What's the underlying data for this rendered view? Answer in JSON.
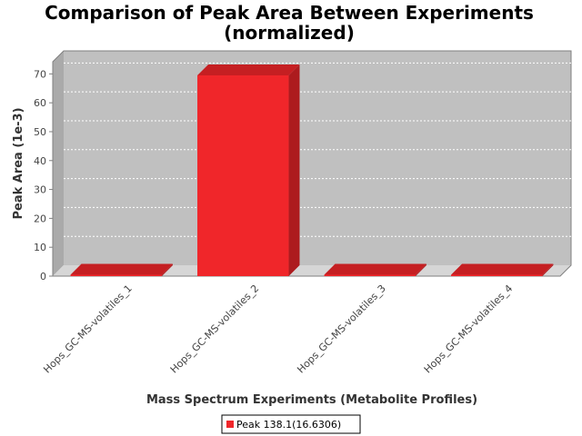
{
  "chart_data": {
    "type": "bar",
    "title": "Comparison of Peak Area Between Experiments",
    "subtitle": "(normalized)",
    "xlabel": "Mass Spectrum Experiments (Metabolite Profiles)",
    "ylabel": "Peak Area (1e-3)",
    "categories": [
      "Hops_GC-MS-volatiles_1",
      "Hops_GC-MS-volatiles_2",
      "Hops_GC-MS-volatiles_3",
      "Hops_GC-MS-volatiles_4"
    ],
    "series": [
      {
        "name": "Peak 138.1(16.6306)",
        "values": [
          0,
          69.5,
          0,
          0
        ],
        "color": "#f0262a"
      }
    ],
    "ylim": [
      0,
      70
    ],
    "yticks": [
      "0",
      "10",
      "20",
      "30",
      "40",
      "50",
      "60",
      "70"
    ],
    "grid": true,
    "legend": "bottom-center",
    "plot_background": "#c0c0c0"
  }
}
